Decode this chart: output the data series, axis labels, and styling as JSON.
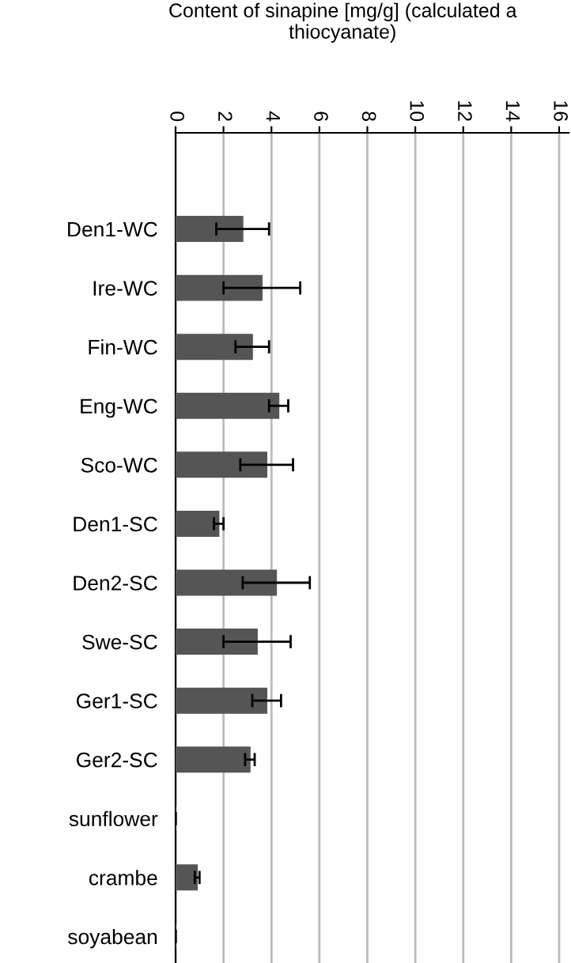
{
  "chart_data": {
    "type": "bar",
    "orientation": "horizontal",
    "title": "Content of sinapine [mg/g] (calculated a\nthiocyanate)",
    "categories": [
      "Den1-WC",
      "Ire-WC",
      "Fin-WC",
      "Eng-WC",
      "Sco-WC",
      "Den1-SC",
      "Den2-SC",
      "Swe-SC",
      "Ger1-SC",
      "Ger2-SC",
      "sunflower",
      "crambe",
      "soyabean"
    ],
    "values": [
      2.8,
      3.6,
      3.2,
      4.3,
      3.8,
      1.8,
      4.2,
      3.4,
      3.8,
      3.1,
      0,
      0.9,
      0
    ],
    "errors": [
      1.1,
      1.6,
      0.7,
      0.4,
      1.1,
      0.2,
      1.4,
      1.4,
      0.6,
      0.2,
      null,
      0.1,
      null
    ],
    "color": "#555555",
    "xlim": [
      0,
      16.4
    ],
    "xticks": [
      0,
      2,
      4,
      6,
      8,
      10,
      12,
      14,
      16
    ],
    "grid": "x"
  }
}
